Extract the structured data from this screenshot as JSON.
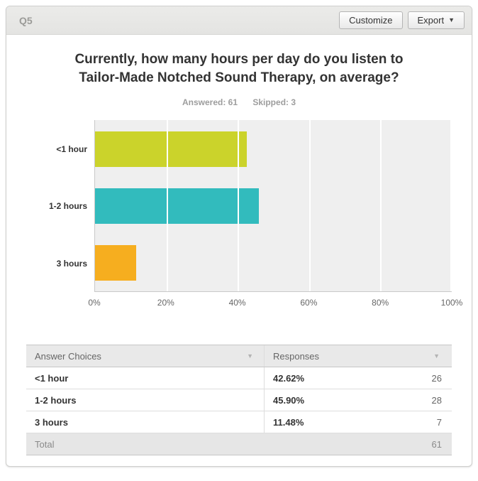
{
  "panel": {
    "question_label": "Q5",
    "customize_label": "Customize",
    "export_label": "Export",
    "export_caret": "▼"
  },
  "title": "Currently, how many hours per day do you listen to Tailor-Made Notched Sound Therapy, on average?",
  "stats": {
    "answered": "Answered: 61",
    "skipped": "Skipped: 3"
  },
  "chart_data": {
    "type": "bar",
    "orientation": "horizontal",
    "categories": [
      "<1 hour",
      "1-2 hours",
      "3 hours"
    ],
    "values": [
      42.62,
      45.9,
      11.48
    ],
    "counts": [
      26,
      28,
      7
    ],
    "colors": [
      "#cbd32b",
      "#32bbbd",
      "#f6ae1f"
    ],
    "xlim": [
      0,
      100
    ],
    "x_tick_labels": [
      "0%",
      "20%",
      "40%",
      "60%",
      "80%",
      "100%"
    ],
    "grid": true,
    "plot_background": "#efefef",
    "title": "Currently, how many hours per day do you listen to Tailor-Made Notched Sound Therapy, on average?",
    "xlabel": "",
    "ylabel": ""
  },
  "table": {
    "headers": [
      "Answer Choices",
      "Responses"
    ],
    "sort_icon": "▼",
    "rows": [
      {
        "choice": "<1 hour",
        "percent": "42.62%",
        "count": "26"
      },
      {
        "choice": "1-2 hours",
        "percent": "45.90%",
        "count": "28"
      },
      {
        "choice": "3 hours",
        "percent": "11.48%",
        "count": "7"
      }
    ],
    "total_label": "Total",
    "total_value": "61"
  }
}
